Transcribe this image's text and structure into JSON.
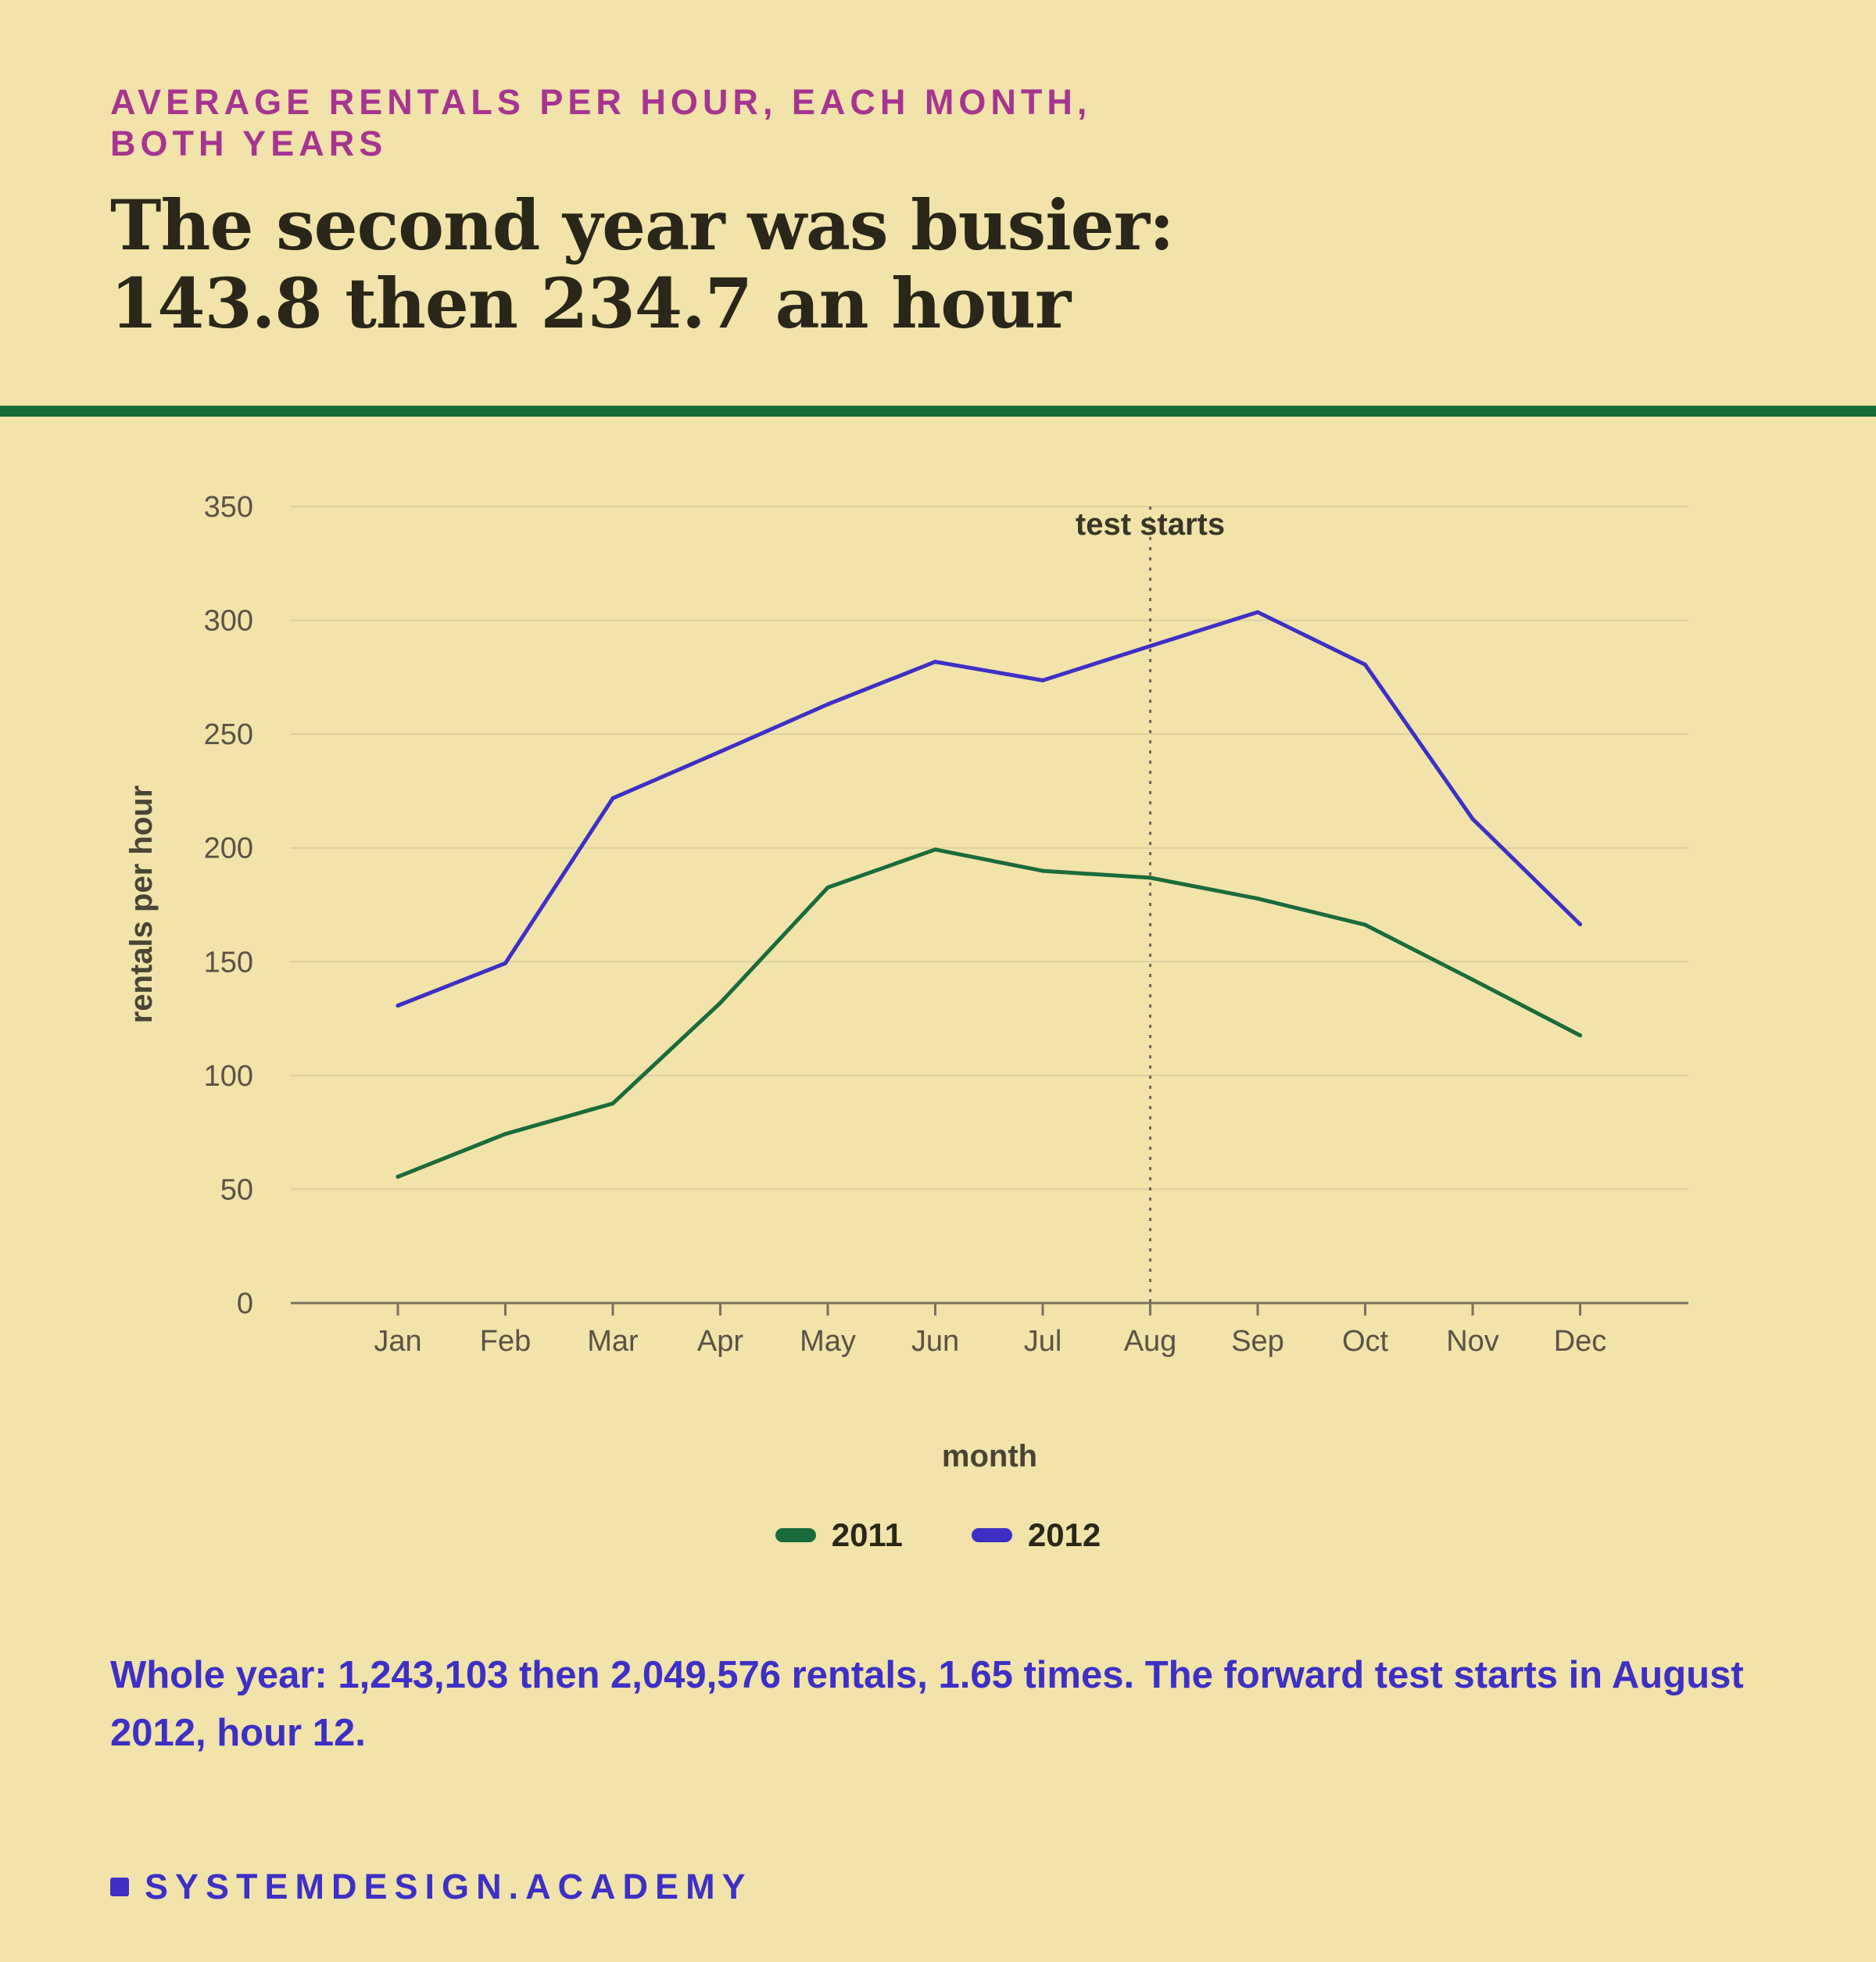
{
  "header": {
    "kicker_line1": "AVERAGE RENTALS PER HOUR, EACH MONTH,",
    "kicker_line2": "BOTH YEARS",
    "headline_line1": "The second year was busier:",
    "headline_line2": "143.8 then 234.7 an hour"
  },
  "chart_data": {
    "type": "line",
    "categories": [
      "Jan",
      "Feb",
      "Mar",
      "Apr",
      "May",
      "Jun",
      "Jul",
      "Aug",
      "Sep",
      "Oct",
      "Nov",
      "Dec"
    ],
    "series": [
      {
        "name": "2011",
        "color": "#1a6b3c",
        "values": [
          55.5,
          74.3,
          87.7,
          131.9,
          182.6,
          199.3,
          189.9,
          186.9,
          177.7,
          166.2,
          142.1,
          117.6
        ]
      },
      {
        "name": "2012",
        "color": "#3e2fc5",
        "values": [
          130.7,
          149.3,
          221.8,
          242.3,
          263.1,
          281.8,
          273.6,
          288.7,
          303.6,
          280.5,
          212.7,
          166.4
        ]
      }
    ],
    "ylim": [
      0,
      350
    ],
    "yticks": [
      0,
      50,
      100,
      150,
      200,
      250,
      300,
      350
    ],
    "xlabel": "month",
    "ylabel": "rentals per hour",
    "grid": true,
    "legend_position": "bottom-center",
    "annotation": {
      "category": "Aug",
      "label": "test starts",
      "style": "dotted-vertical-line"
    }
  },
  "footnote": "Whole year: 1,243,103 then 2,049,576 rentals, 1.65 times. The forward test starts in August 2012, hour 12.",
  "brand": {
    "text": "SYSTEMDESIGN.ACADEMY"
  },
  "colors": {
    "background": "#f1e3aa",
    "kicker": "#a63591",
    "rule": "#1a6b3c",
    "accent": "#3e2fc5"
  }
}
